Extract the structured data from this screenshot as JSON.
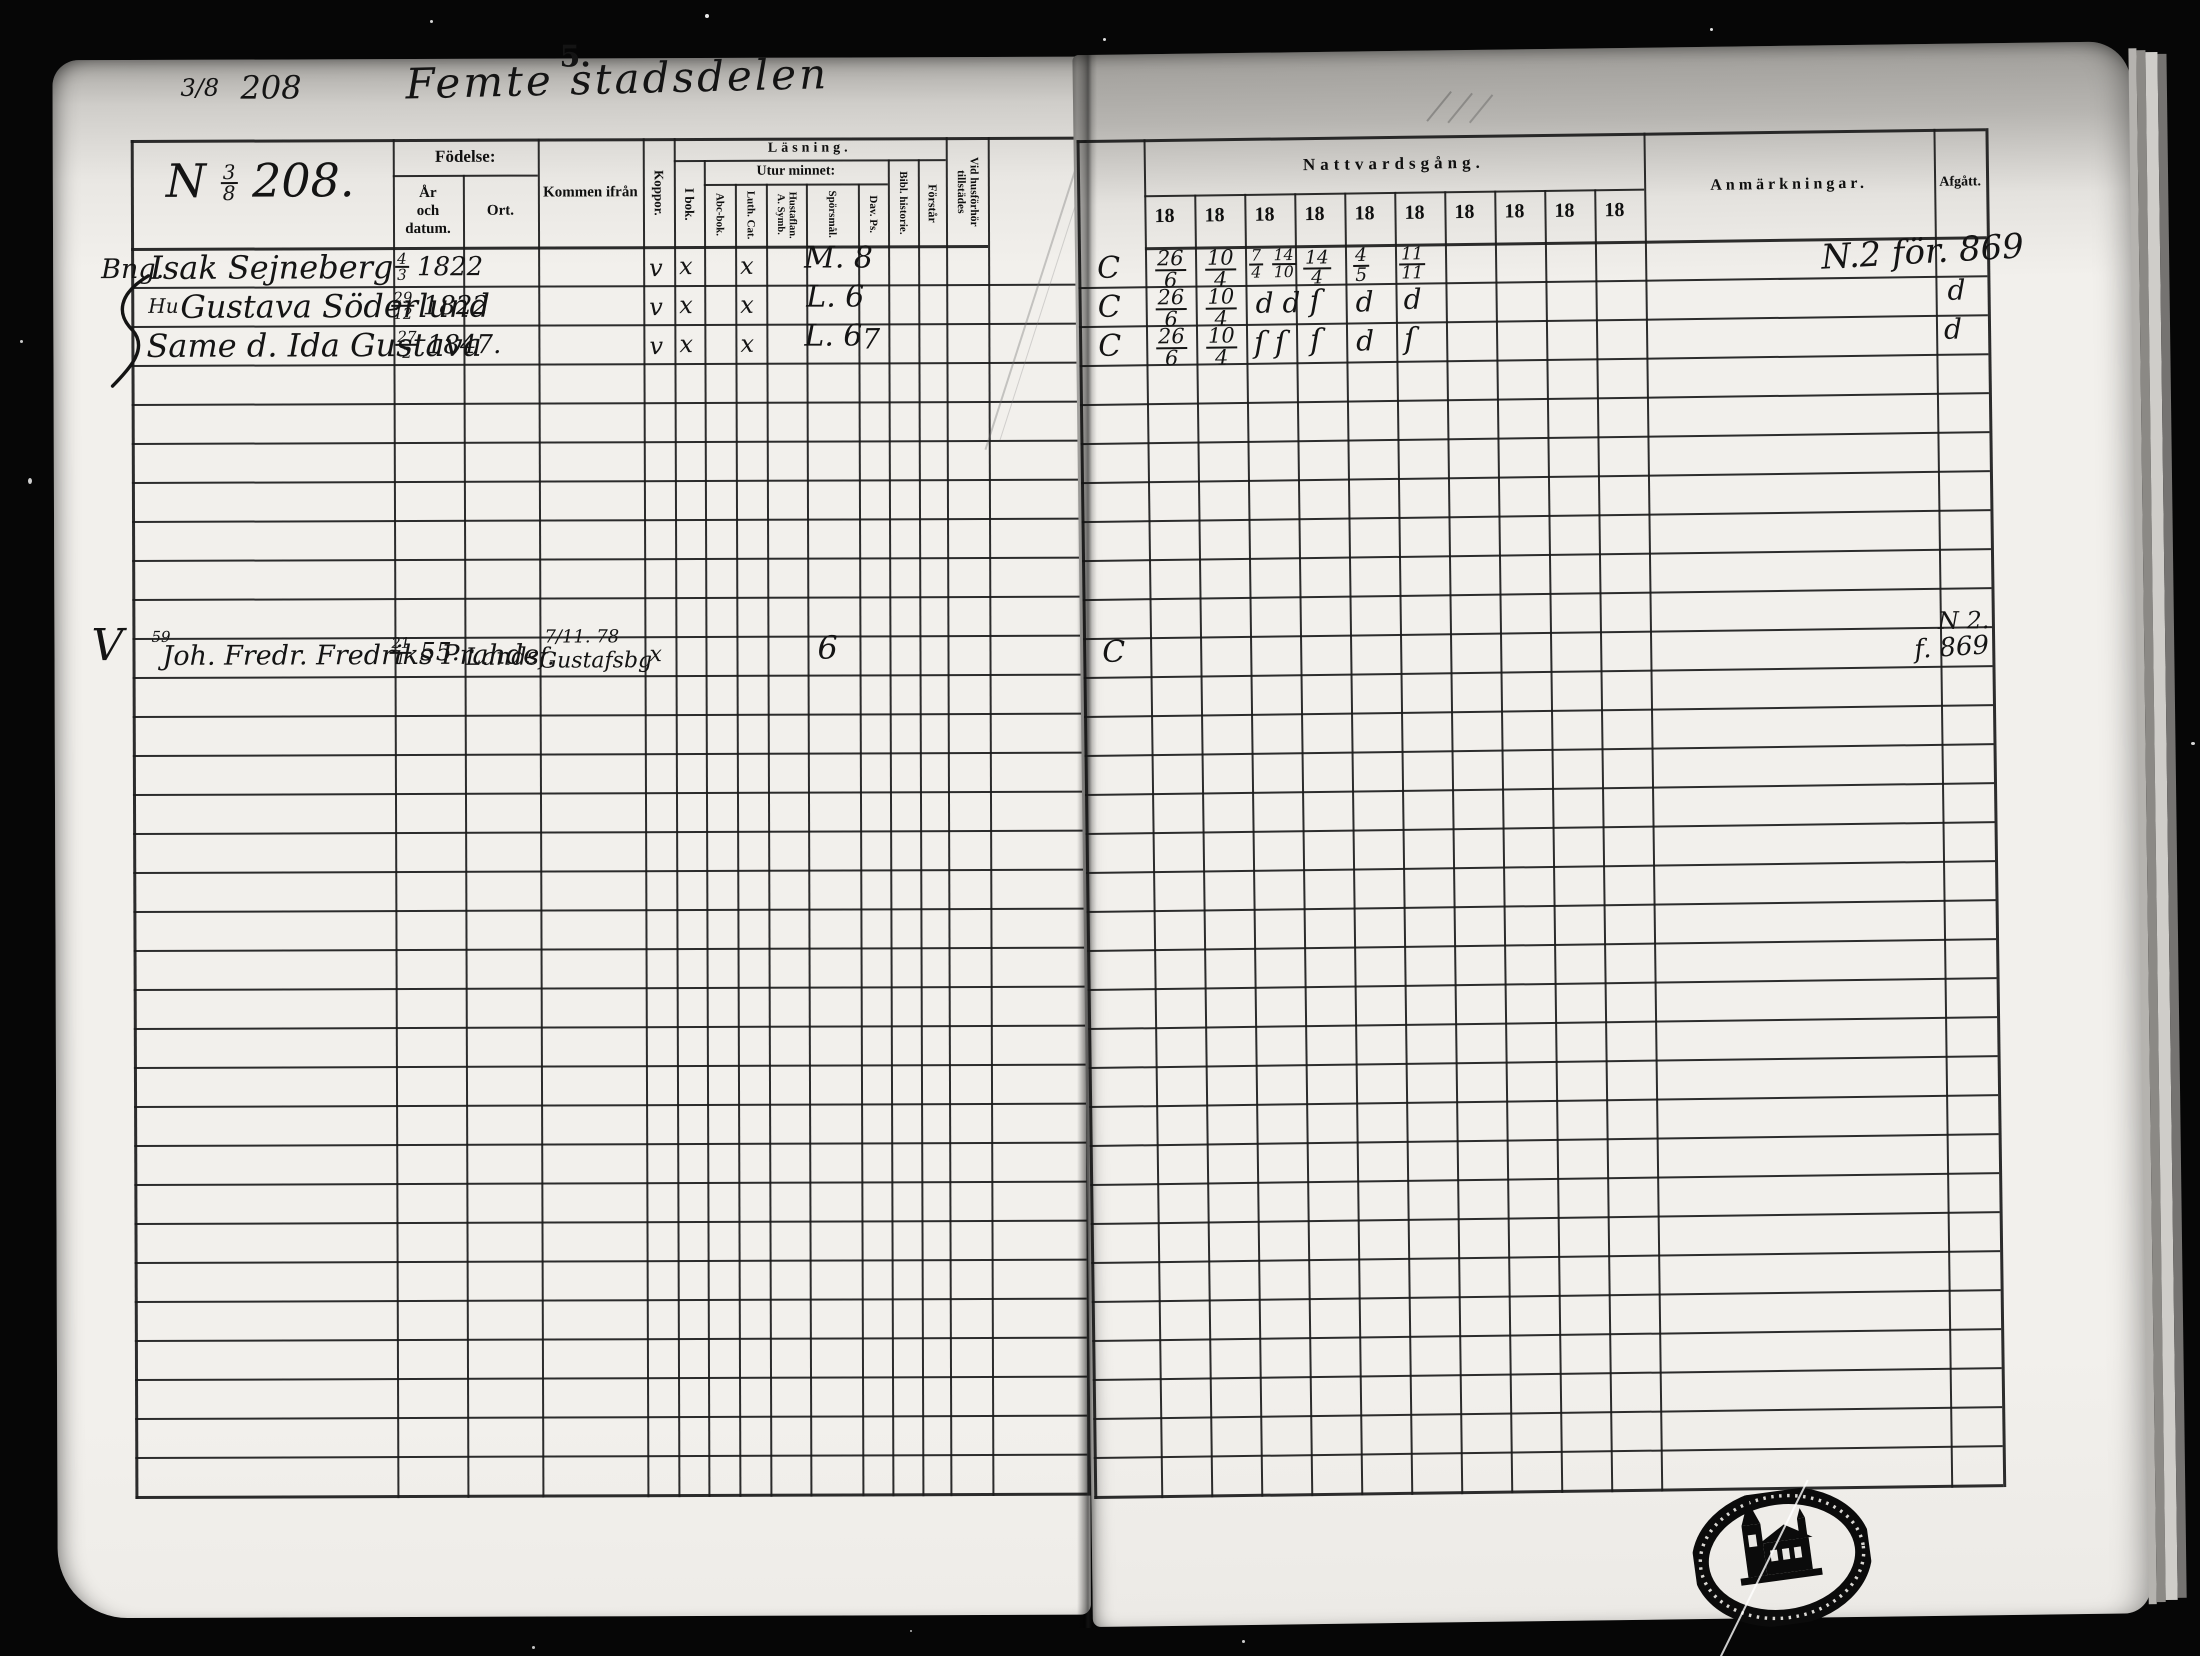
{
  "hdr": {
    "page_no": "5.",
    "folio": "3/8",
    "folio_no": "208",
    "title": "Femte stadsdelen"
  },
  "cell": {
    "n": "N",
    "fn": "3",
    "fd": "8",
    "no": "208."
  },
  "lt": {
    "fodelse": "Födelse:",
    "ar1": "År",
    "ar2": "och datum.",
    "ort": "Ort.",
    "kommen": "Kommen ifrån",
    "koppor": "Koppor.",
    "lasning": "Läsning.",
    "ibok": "I bok.",
    "utur": "Utur minnet:",
    "abc": "Abc-bok.",
    "luth": "Luth. Cat.",
    "hustaflan": "Hustaflan. A. Symb.",
    "sporsmal": "Spörsmål.",
    "davps": "Dav. Ps.",
    "bibl": "Bibl. historie.",
    "forstar": "Förstår",
    "vidhus": "Vid husförhör tillstädes"
  },
  "rt": {
    "nattvard": "Nattvardsgång.",
    "years": [
      "18",
      "18",
      "18",
      "18",
      "18",
      "18",
      "18",
      "18",
      "18",
      "18"
    ],
    "anm": "Anmärkningar.",
    "afgatt": "Afgått."
  },
  "marks": {
    "c": "C"
  },
  "e1": {
    "margin": "Bng.",
    "name": "Isak Sejneberg",
    "bn": "4",
    "bd": "3",
    "by": "1822",
    "m1": "v",
    "m2": "x",
    "m3": "x",
    "q": "M. 8",
    "n1n": "26",
    "n1d": "6",
    "n2n": "10",
    "n2d": "4",
    "n3an": "7",
    "n3ad": "4",
    "n3bn": "14",
    "n3bd": "10",
    "n4n": "14",
    "n4d": "4",
    "n5n": "4",
    "n5d": "5",
    "n6n": "11",
    "n6d": "11",
    "dep": "N.2 för. 869"
  },
  "e2": {
    "pre": "Hu",
    "name": "Gustava Söderlund",
    "bn": "29",
    "bd": "12",
    "by": "1822",
    "m1": "v",
    "m2": "x",
    "m3": "x",
    "q": "L. 6",
    "n1n": "26",
    "n1d": "6",
    "n2n": "10",
    "n2d": "4",
    "d3": "d d",
    "d4": "ſ",
    "d5": "d",
    "d6": "d",
    "dep": "d"
  },
  "e3": {
    "name": "Same d. Ida Gustava",
    "bn": "27",
    "bd": "2",
    "by": "1847.",
    "m1": "v",
    "m2": "x",
    "m3": "x",
    "q": "L. 6",
    "ps": "7",
    "n1n": "26",
    "n1d": "6",
    "n2n": "10",
    "n2d": "4",
    "d3": "ſ ſ",
    "d4": "ſ",
    "d5": "d",
    "d6": "ſ",
    "dep": "d"
  },
  "e4": {
    "margin": "V",
    "sup": "59",
    "name": "Joh. Fredr. Fredriks Prahde",
    "bn": "21",
    "bd": "1",
    "by": "55.",
    "place": "Landsf.",
    "cfa": "7/11. 78",
    "cfb": "Gustafsbg",
    "cm": "x",
    "q": "6",
    "dep1": "N 2.",
    "dep2": "f. 869"
  }
}
